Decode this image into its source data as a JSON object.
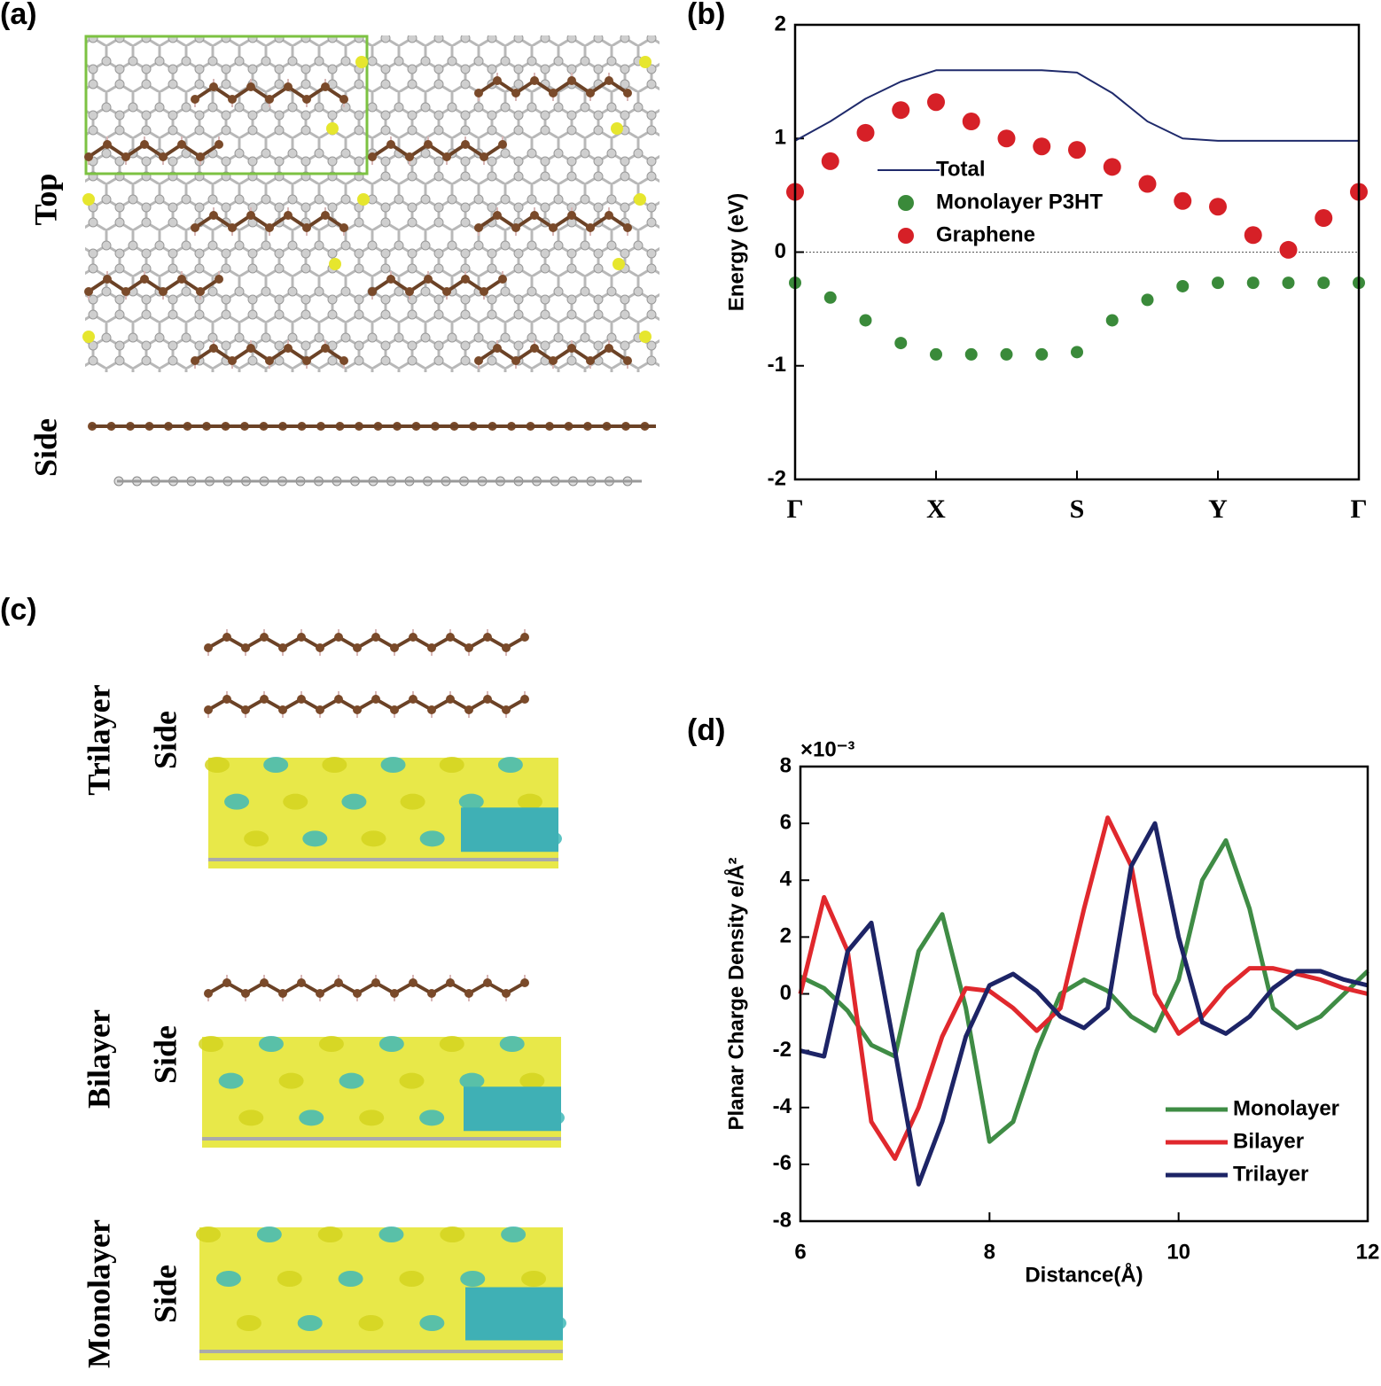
{
  "panels": {
    "a": {
      "label": "(a)",
      "top": "Top",
      "side": "Side"
    },
    "b": {
      "label": "(b)"
    },
    "c": {
      "label": "(c)",
      "rows": [
        {
          "name": "Trilayer",
          "view": "Side"
        },
        {
          "name": "Bilayer",
          "view": "Side"
        },
        {
          "name": "Monolayer",
          "view": "Side"
        }
      ]
    },
    "d": {
      "label": "(d)"
    }
  },
  "chart_data": [
    {
      "type": "line",
      "ylabel": "Energy (eV)",
      "x": [
        0,
        0.25,
        0.5,
        0.75,
        1,
        1.25,
        1.5,
        1.75,
        2,
        2.25,
        2.5,
        2.75,
        3,
        3.25,
        3.5,
        3.75,
        4
      ],
      "xlim": [
        0,
        4
      ],
      "xticks": [
        {
          "value": 0,
          "label": "Γ"
        },
        {
          "value": 1,
          "label": "X"
        },
        {
          "value": 2,
          "label": "S"
        },
        {
          "value": 3,
          "label": "Y"
        },
        {
          "value": 4,
          "label": "Γ"
        }
      ],
      "ylim": [
        -2,
        2
      ],
      "yticks": [
        -2,
        -1,
        0,
        1,
        2
      ],
      "series": [
        {
          "name": "Total",
          "color": "#1f2a6b",
          "mode": "line",
          "values": [
            0.98,
            1.15,
            1.35,
            1.5,
            1.6,
            1.6,
            1.6,
            1.6,
            1.58,
            1.4,
            1.15,
            1.0,
            0.98,
            0.98,
            0.98,
            0.98,
            0.98
          ]
        },
        {
          "name": "Monolayer P3HT",
          "color": "#3a8a3a",
          "mode": "dot",
          "values": [
            -0.27,
            -0.4,
            -0.6,
            -0.8,
            -0.9,
            -0.9,
            -0.9,
            -0.9,
            -0.88,
            -0.6,
            -0.42,
            -0.3,
            -0.27,
            -0.27,
            -0.27,
            -0.27,
            -0.27
          ]
        },
        {
          "name": "Graphene",
          "color": "#d62027",
          "mode": "dot",
          "values": [
            0.53,
            0.8,
            1.05,
            1.25,
            1.32,
            1.15,
            1.0,
            0.93,
            0.9,
            0.75,
            0.6,
            0.45,
            0.4,
            0.15,
            0.02,
            0.3,
            0.53
          ]
        }
      ]
    },
    {
      "type": "line",
      "xlabel": "Distance(Å)",
      "ylabel": "Planar Charge Density e/Å²",
      "multiplier": "×10⁻³",
      "x": [
        6,
        6.25,
        6.5,
        6.75,
        7,
        7.25,
        7.5,
        7.75,
        8,
        8.25,
        8.5,
        8.75,
        9,
        9.25,
        9.5,
        9.75,
        10,
        10.25,
        10.5,
        10.75,
        11,
        11.25,
        11.5,
        11.75,
        12
      ],
      "xlim": [
        6,
        12
      ],
      "xticks": [
        6,
        8,
        10,
        12
      ],
      "ylim": [
        -8,
        8
      ],
      "yticks": [
        -8,
        -6,
        -4,
        -2,
        0,
        2,
        4,
        6,
        8
      ],
      "series": [
        {
          "name": "Monolayer",
          "color": "#3f8c45",
          "values": [
            0.6,
            0.2,
            -0.6,
            -1.8,
            -2.2,
            1.5,
            2.8,
            -0.5,
            -5.2,
            -4.5,
            -2,
            0,
            0.5,
            0.1,
            -0.8,
            -1.3,
            0.5,
            4.0,
            5.4,
            3.0,
            -0.5,
            -1.2,
            -0.8,
            0,
            0.8
          ]
        },
        {
          "name": "Bilayer",
          "color": "#e0282d",
          "values": [
            0,
            3.4,
            1.5,
            -4.5,
            -5.8,
            -4,
            -1.5,
            0.2,
            0.1,
            -0.5,
            -1.3,
            -0.5,
            3.0,
            6.2,
            4.5,
            0,
            -1.4,
            -0.8,
            0.2,
            0.9,
            0.9,
            0.7,
            0.5,
            0.2,
            0
          ]
        },
        {
          "name": "Trilayer",
          "color": "#1d2466",
          "values": [
            -2,
            -2.2,
            1.5,
            2.5,
            -2,
            -6.7,
            -4.5,
            -1.5,
            0.3,
            0.7,
            0.1,
            -0.8,
            -1.2,
            -0.5,
            4.5,
            6.0,
            2,
            -1,
            -1.4,
            -0.8,
            0.2,
            0.8,
            0.8,
            0.5,
            0.3
          ]
        }
      ]
    }
  ]
}
